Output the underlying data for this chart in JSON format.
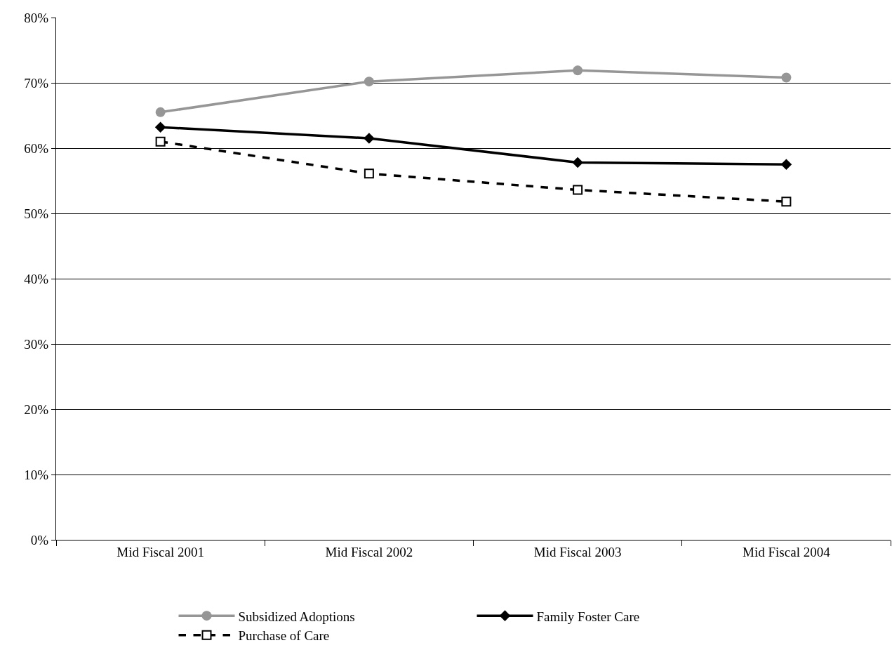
{
  "chart_data": {
    "type": "line",
    "categories": [
      "Mid Fiscal 2001",
      "Mid Fiscal 2002",
      "Mid Fiscal 2003",
      "Mid Fiscal 2004"
    ],
    "series": [
      {
        "name": "Subsidized Adoptions",
        "color": "#969696",
        "values": [
          65.5,
          70.2,
          71.9,
          70.8
        ],
        "marker": "circle",
        "line_style": "solid"
      },
      {
        "name": "Family Foster Care",
        "color": "#000000",
        "values": [
          63.2,
          61.5,
          57.8,
          57.5
        ],
        "marker": "diamond",
        "line_style": "solid"
      },
      {
        "name": "Purchase of Care",
        "color": "#000000",
        "values": [
          61.0,
          56.1,
          53.6,
          51.8
        ],
        "marker": "square-open",
        "line_style": "dashed"
      }
    ],
    "ylim": [
      0,
      80
    ],
    "yticks": [
      {
        "value": 0,
        "label": "0%"
      },
      {
        "value": 10,
        "label": "10%"
      },
      {
        "value": 20,
        "label": "20%"
      },
      {
        "value": 30,
        "label": "30%"
      },
      {
        "value": 40,
        "label": "40%"
      },
      {
        "value": 50,
        "label": "50%"
      },
      {
        "value": 60,
        "label": "60%"
      },
      {
        "value": 70,
        "label": "70%"
      },
      {
        "value": 80,
        "label": "80%"
      }
    ],
    "grid": "y",
    "legend": "bottom"
  }
}
